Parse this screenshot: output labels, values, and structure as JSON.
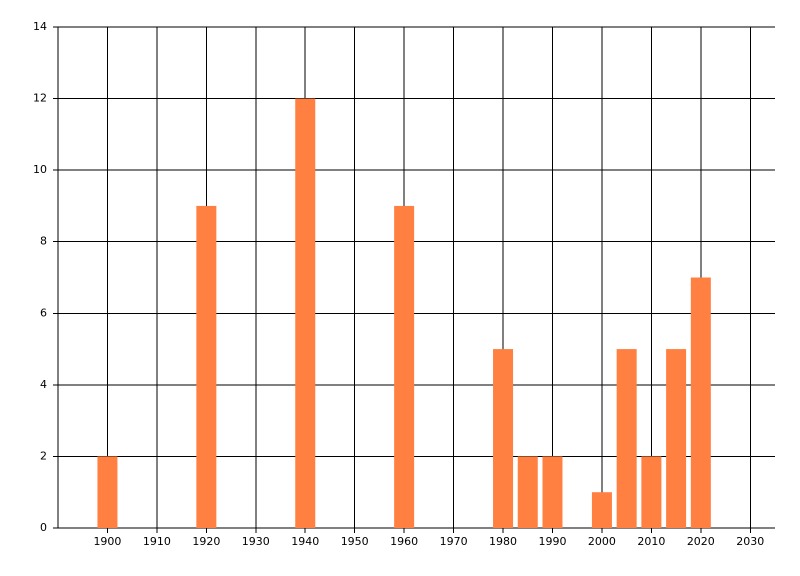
{
  "chart_data": {
    "type": "bar",
    "x": [
      1900,
      1920,
      1940,
      1960,
      1980,
      1985,
      1990,
      2000,
      2005,
      2010,
      2015,
      2020
    ],
    "values": [
      2,
      9,
      12,
      9,
      5,
      2,
      2,
      1,
      5,
      2,
      5,
      7
    ],
    "color": "#ff8040",
    "xlim": [
      1890,
      2035
    ],
    "xticks": [
      1900,
      1910,
      1920,
      1930,
      1940,
      1950,
      1960,
      1970,
      1980,
      1990,
      2000,
      2010,
      2020,
      2030
    ],
    "ylim": [
      0,
      14
    ],
    "yticks": [
      0,
      2,
      4,
      6,
      8,
      10,
      12,
      14
    ],
    "grid": true
  }
}
